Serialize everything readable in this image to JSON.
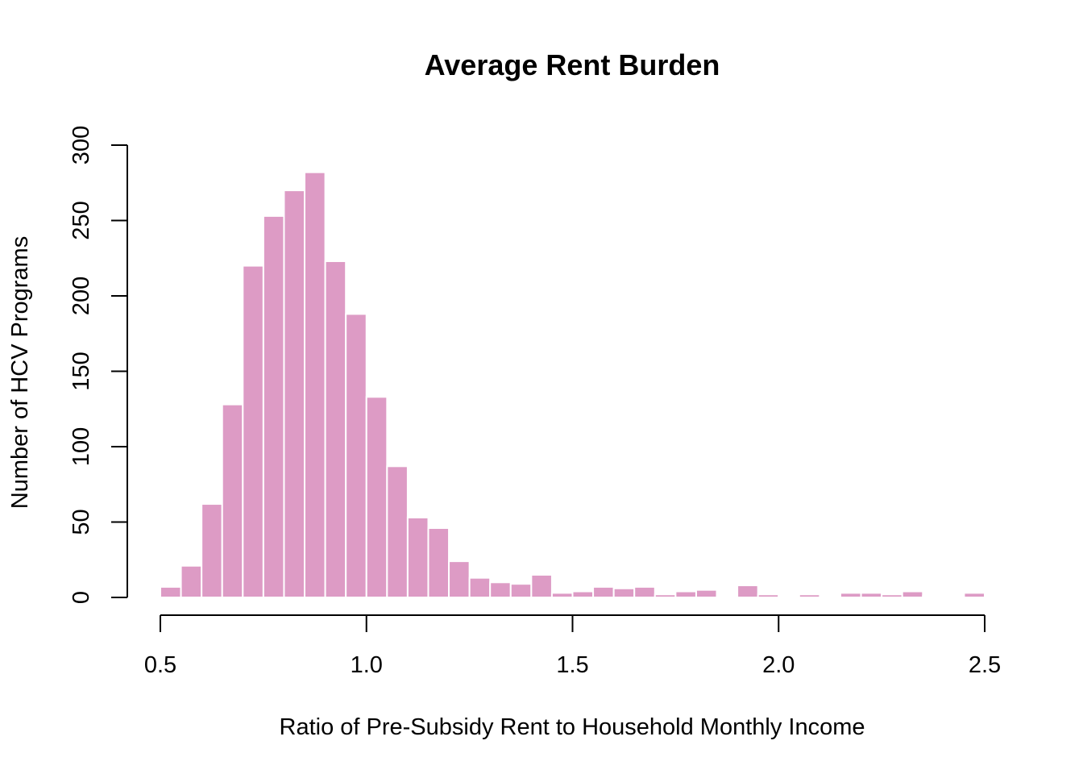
{
  "chart_data": {
    "type": "bar",
    "title": "Average Rent Burden",
    "xlabel": "Ratio of Pre-Subsidy Rent to Household Monthly Income",
    "ylabel": "Number of HCV Programs",
    "xlim": [
      0.45,
      2.5
    ],
    "ylim": [
      0,
      300
    ],
    "xticks": [
      0.5,
      1.0,
      1.5,
      2.0,
      2.5
    ],
    "xtick_labels": [
      "0.5",
      "1.0",
      "1.5",
      "2.0",
      "2.5"
    ],
    "yticks": [
      0,
      50,
      100,
      150,
      200,
      250,
      300
    ],
    "ytick_labels": [
      "0",
      "50",
      "100",
      "150",
      "200",
      "250",
      "300"
    ],
    "bin_width": 0.05,
    "bin_starts": [
      0.45,
      0.5,
      0.55,
      0.6,
      0.65,
      0.7,
      0.75,
      0.8,
      0.85,
      0.9,
      0.95,
      1.0,
      1.05,
      1.1,
      1.15,
      1.2,
      1.25,
      1.3,
      1.35,
      1.4,
      1.45,
      1.5,
      1.55,
      1.6,
      1.65,
      1.7,
      1.75,
      1.8,
      1.85,
      1.9,
      1.95,
      2.0,
      2.05,
      2.1,
      2.15,
      2.2,
      2.25,
      2.3,
      2.35,
      2.4,
      2.45
    ],
    "values": [
      1,
      7,
      21,
      62,
      128,
      220,
      253,
      270,
      282,
      223,
      188,
      133,
      87,
      53,
      46,
      24,
      13,
      10,
      9,
      15,
      3,
      4,
      7,
      6,
      7,
      2,
      4,
      5,
      1,
      8,
      2,
      1,
      2,
      1,
      3,
      3,
      2,
      4,
      1,
      1,
      3
    ],
    "bar_color": "#DD9BC5",
    "bar_border_color": "#FFFFFF",
    "grid": false,
    "legend": "none"
  }
}
